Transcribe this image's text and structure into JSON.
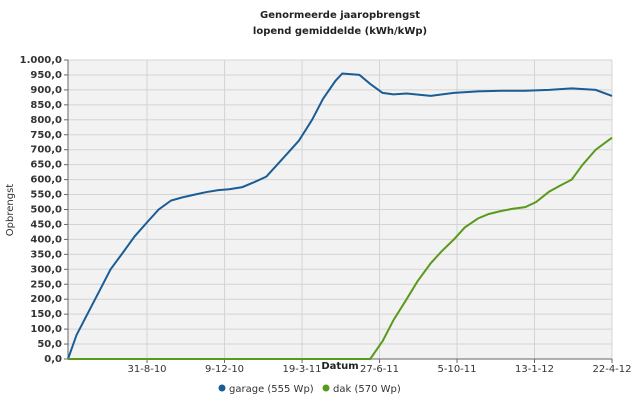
{
  "chart_data": {
    "type": "line",
    "title": "Genormeerde jaaropbrengst",
    "subtitle": "lopend gemiddelde (kWh/kWp)",
    "x_label": "Datum",
    "y_label": "Opbrengst",
    "xlim": [
      "2010-05-21",
      "2012-04-22"
    ],
    "xticks": [
      {
        "value": "2010-08-31",
        "label": "31-8-10"
      },
      {
        "value": "2010-12-09",
        "label": "9-12-10"
      },
      {
        "value": "2011-03-19",
        "label": "19-3-11"
      },
      {
        "value": "2011-06-27",
        "label": "27-6-11"
      },
      {
        "value": "2011-10-05",
        "label": "5-10-11"
      },
      {
        "value": "2012-01-13",
        "label": "13-1-12"
      },
      {
        "value": "2012-04-22",
        "label": "22-4-12"
      }
    ],
    "ylim": [
      0,
      1000
    ],
    "yticks": [
      {
        "value": 0,
        "label": "0,0"
      },
      {
        "value": 50,
        "label": "50,0"
      },
      {
        "value": 100,
        "label": "100,0"
      },
      {
        "value": 150,
        "label": "150,0"
      },
      {
        "value": 200,
        "label": "200,0"
      },
      {
        "value": 250,
        "label": "250,0"
      },
      {
        "value": 300,
        "label": "300,0"
      },
      {
        "value": 350,
        "label": "350,0"
      },
      {
        "value": 400,
        "label": "400,0"
      },
      {
        "value": 450,
        "label": "450,0"
      },
      {
        "value": 500,
        "label": "500,0"
      },
      {
        "value": 550,
        "label": "550,0"
      },
      {
        "value": 600,
        "label": "600,0"
      },
      {
        "value": 650,
        "label": "650,0"
      },
      {
        "value": 700,
        "label": "700,0"
      },
      {
        "value": 750,
        "label": "750,0"
      },
      {
        "value": 800,
        "label": "800,0"
      },
      {
        "value": 850,
        "label": "850,0"
      },
      {
        "value": 900,
        "label": "900,0"
      },
      {
        "value": 950,
        "label": "950,0"
      },
      {
        "value": 1000,
        "label": "1.000,0"
      }
    ],
    "grid": true,
    "series": [
      {
        "name": "garage (555 Wp)",
        "color": "#1a5c96",
        "x": [
          "2010-05-21",
          "2010-06-01",
          "2010-06-15",
          "2010-07-01",
          "2010-07-15",
          "2010-08-01",
          "2010-08-15",
          "2010-09-01",
          "2010-09-15",
          "2010-10-01",
          "2010-10-15",
          "2010-11-01",
          "2010-11-15",
          "2010-12-01",
          "2010-12-15",
          "2011-01-01",
          "2011-01-15",
          "2011-02-01",
          "2011-02-15",
          "2011-03-01",
          "2011-03-15",
          "2011-04-01",
          "2011-04-15",
          "2011-05-01",
          "2011-05-10",
          "2011-06-01",
          "2011-06-15",
          "2011-07-01",
          "2011-07-15",
          "2011-08-01",
          "2011-09-01",
          "2011-10-01",
          "2011-11-01",
          "2011-12-01",
          "2012-01-01",
          "2012-02-01",
          "2012-03-01",
          "2012-04-01",
          "2012-04-22"
        ],
        "values": [
          0,
          80,
          150,
          230,
          300,
          360,
          410,
          460,
          500,
          530,
          540,
          550,
          558,
          565,
          568,
          575,
          590,
          610,
          650,
          690,
          730,
          800,
          870,
          930,
          955,
          950,
          920,
          890,
          885,
          888,
          880,
          890,
          895,
          897,
          897,
          900,
          905,
          900,
          880
        ]
      },
      {
        "name": "dak (570 Wp)",
        "color": "#5a9a1a",
        "x": [
          "2010-05-21",
          "2011-06-15",
          "2011-07-01",
          "2011-07-15",
          "2011-08-01",
          "2011-08-15",
          "2011-09-01",
          "2011-09-15",
          "2011-10-01",
          "2011-10-15",
          "2011-11-01",
          "2011-11-15",
          "2011-12-01",
          "2011-12-15",
          "2012-01-01",
          "2012-01-15",
          "2012-02-01",
          "2012-02-15",
          "2012-03-01",
          "2012-03-15",
          "2012-04-01",
          "2012-04-22"
        ],
        "values": [
          0,
          0,
          60,
          130,
          200,
          260,
          320,
          360,
          400,
          440,
          470,
          485,
          495,
          502,
          508,
          525,
          560,
          580,
          600,
          650,
          700,
          740
        ]
      }
    ]
  }
}
